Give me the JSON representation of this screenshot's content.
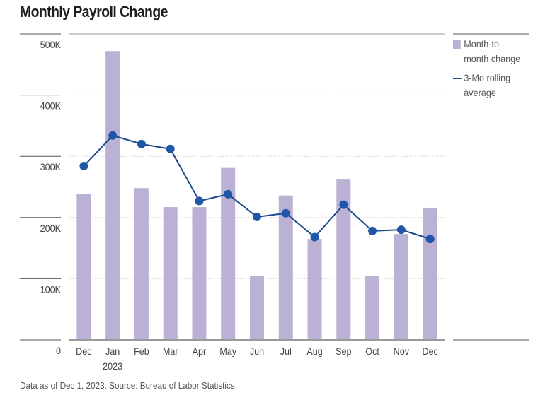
{
  "title": "Monthly Payroll Change",
  "footer": "Data as of Dec 1, 2023. Source: Bureau of Labor Statistics.",
  "colors": {
    "bar": "#bbb1d4",
    "line": "#1c4a8c",
    "marker": "#1f56a8",
    "grid": "#d9d9d9",
    "axis": "#999999"
  },
  "legend": {
    "items": [
      {
        "label_line1": "Month-to-",
        "label_line2": "month change",
        "icon": "bar-swatch"
      },
      {
        "label_line1": "3-Mo rolling",
        "label_line2": "average",
        "icon": "line-swatch"
      }
    ]
  },
  "chart_data": {
    "type": "bar",
    "title": "Monthly Payroll Change",
    "xlabel": "",
    "ylabel": "",
    "ylim": [
      0,
      500000
    ],
    "yticks": [
      0,
      100000,
      200000,
      300000,
      400000,
      500000
    ],
    "ytick_labels": [
      "0",
      "100K",
      "200K",
      "300K",
      "400K",
      "500K"
    ],
    "grid": true,
    "legend_position": "right",
    "categories": [
      "Dec",
      "Jan",
      "Feb",
      "Mar",
      "Apr",
      "May",
      "Jun",
      "Jul",
      "Aug",
      "Sep",
      "Oct",
      "Nov",
      "Dec"
    ],
    "category_sublabels": [
      "",
      "2023",
      "",
      "",
      "",
      "",
      "",
      "",
      "",
      "",
      "",
      "",
      ""
    ],
    "series": [
      {
        "name": "Month-to-month change",
        "type": "bar",
        "values": [
          239000,
          472000,
          248000,
          217000,
          217000,
          281000,
          105000,
          236000,
          165000,
          262000,
          105000,
          173000,
          216000
        ]
      },
      {
        "name": "3-Mo rolling average",
        "type": "line",
        "values": [
          284000,
          334000,
          320000,
          312000,
          227000,
          238000,
          201000,
          207000,
          168000,
          221000,
          178000,
          180000,
          165000
        ]
      }
    ]
  }
}
